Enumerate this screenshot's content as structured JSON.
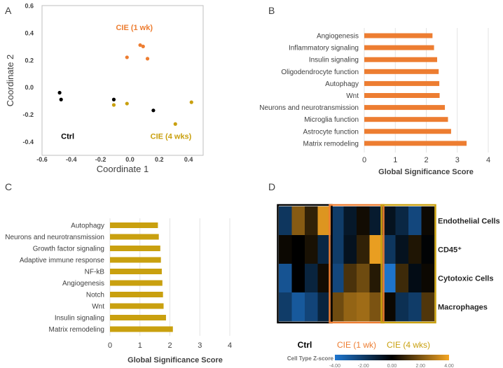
{
  "panel_labels": {
    "a": "A",
    "b": "B",
    "c": "C",
    "d": "D"
  },
  "colors": {
    "orange": "#ED7D31",
    "gold": "#C9A00F",
    "black": "#000000",
    "grid": "#D9D9D9",
    "frame": "#BFBFBF"
  },
  "chart_data": [
    {
      "type": "scatter",
      "panel": "A",
      "title": "",
      "xlabel": "Coordinate 1",
      "ylabel": "Coordinate 2",
      "xlim": [
        -0.6,
        0.5
      ],
      "ylim": [
        -0.5,
        0.6
      ],
      "xticks": [
        "-0.6",
        "-0.4",
        "-0.2",
        "0.0",
        "0.2",
        "0.4"
      ],
      "xtick_values": [
        -0.6,
        -0.4,
        -0.2,
        0.0,
        0.2,
        0.4
      ],
      "yticks": [
        "0.6",
        "0.4",
        "0.2",
        "0.0",
        "-0.2",
        "-0.4"
      ],
      "ytick_values": [
        0.6,
        0.4,
        0.2,
        0.0,
        -0.2,
        -0.4
      ],
      "series": [
        {
          "name": "Ctrl",
          "color": "#000000",
          "points": [
            [
              -0.48,
              -0.04
            ],
            [
              -0.47,
              -0.09
            ],
            [
              -0.11,
              -0.09
            ],
            [
              0.16,
              -0.17
            ]
          ]
        },
        {
          "name": "CIE (1 wk)",
          "color": "#ED7D31",
          "points": [
            [
              0.07,
              0.31
            ],
            [
              0.09,
              0.3
            ],
            [
              -0.02,
              0.22
            ],
            [
              0.12,
              0.21
            ]
          ]
        },
        {
          "name": "CIE (4 wks)",
          "color": "#C9A00F",
          "points": [
            [
              -0.11,
              -0.13
            ],
            [
              -0.02,
              -0.12
            ],
            [
              0.42,
              -0.11
            ],
            [
              0.31,
              -0.27
            ]
          ]
        }
      ],
      "annotations": [
        {
          "text": "CIE (1 wk)",
          "x": 0.03,
          "y": 0.42,
          "color": "#ED7D31"
        },
        {
          "text": "Ctrl",
          "x": -0.47,
          "y": -0.38,
          "color": "#000000"
        },
        {
          "text": "CIE (4 wks)",
          "x": 0.28,
          "y": -0.38,
          "color": "#C9A00F"
        }
      ]
    },
    {
      "type": "bar",
      "panel": "B",
      "orientation": "horizontal",
      "color": "#ED7D31",
      "categories": [
        "Angiogenesis",
        "Inflammatory signaling",
        "Insulin signaling",
        "Oligodendrocyte function",
        "Autophagy",
        "Wnt",
        "Neurons and neurotransmission",
        "Microglia function",
        "Astrocyte function",
        "Matrix remodeling"
      ],
      "values": [
        2.2,
        2.25,
        2.35,
        2.4,
        2.42,
        2.43,
        2.6,
        2.7,
        2.8,
        3.3
      ],
      "xlabel": "Global Significance Score",
      "xlim": [
        0,
        4
      ],
      "xticks": [
        "0",
        "1",
        "2",
        "3",
        "4"
      ],
      "xtick_values": [
        0,
        1,
        2,
        3,
        4
      ]
    },
    {
      "type": "bar",
      "panel": "C",
      "orientation": "horizontal",
      "color": "#C9A00F",
      "categories": [
        "Autophagy",
        "Neurons and neurotransmission",
        "Growth factor signaling",
        "Adaptive immune response",
        "NF-kB",
        "Angiogenesis",
        "Notch",
        "Wnt",
        "Insulin  signaling",
        "Matrix remodeling"
      ],
      "values": [
        1.6,
        1.63,
        1.68,
        1.7,
        1.73,
        1.75,
        1.77,
        1.79,
        1.87,
        2.1
      ],
      "xlabel": "Global Significance Score",
      "xlim": [
        0,
        4
      ],
      "xticks": [
        "0",
        "1",
        "2",
        "3",
        "4"
      ],
      "xtick_values": [
        0,
        1,
        2,
        3,
        4
      ]
    },
    {
      "type": "heatmap",
      "panel": "D",
      "rows": [
        "Endothelial Cells",
        "CD45⁺",
        "Cytotoxic Cells",
        "Macrophages"
      ],
      "groups": [
        {
          "name": "Ctrl",
          "color": "#000000",
          "columns": 4
        },
        {
          "name": "CIE (1 wk)",
          "color": "#ED7D31",
          "columns": 4
        },
        {
          "name": "CIE (4 wks)",
          "color": "#C9A00F",
          "columns": 4
        }
      ],
      "values": [
        [
          -1.8,
          2.2,
          0.8,
          3.6,
          -2.0,
          -0.8,
          0.3,
          -0.9,
          -0.6,
          -1.3,
          -2.4,
          0.2
        ],
        [
          0.2,
          0.0,
          0.4,
          -1.3,
          -2.0,
          -0.6,
          0.8,
          3.8,
          -1.8,
          -0.6,
          0.5,
          -0.1
        ],
        [
          -2.8,
          0.0,
          -1.2,
          0.3,
          -2.4,
          1.2,
          1.8,
          0.6,
          -3.9,
          1.0,
          -0.4,
          0.2
        ],
        [
          -2.0,
          -3.0,
          -2.3,
          -1.2,
          1.8,
          2.4,
          2.6,
          2.0,
          0.2,
          -1.6,
          -2.0,
          1.3
        ]
      ],
      "colorbar": {
        "label": "Cell Type Z-score",
        "ticks": [
          "-4.00",
          "-2.00",
          "0.00",
          "2.00",
          "4.00"
        ],
        "range": [
          -4,
          4
        ],
        "low_color": "#1F77D0",
        "mid_color": "#000000",
        "high_color": "#F5A623"
      }
    }
  ]
}
